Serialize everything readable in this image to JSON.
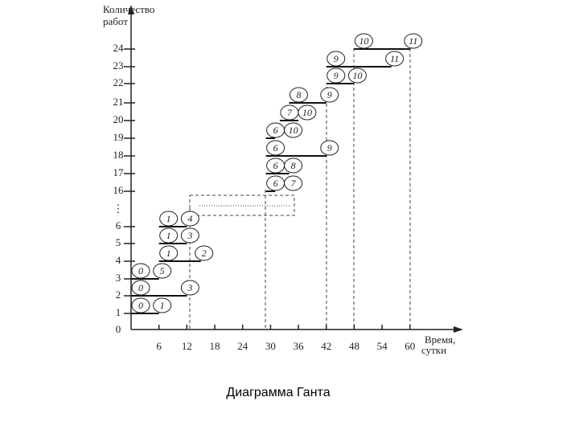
{
  "y_axis_label": [
    "Количество",
    "работ"
  ],
  "x_axis_label": [
    "Время,",
    "сутки"
  ],
  "origin_label": "0",
  "y_labels": [
    "1",
    "2",
    "3",
    "4",
    "5",
    "6",
    "16",
    "17",
    "18",
    "19",
    "20",
    "21",
    "22",
    "23",
    "24"
  ],
  "y_ellipsis": "⋮",
  "x_ticks": [
    6,
    12,
    18,
    24,
    30,
    36,
    42,
    48,
    54,
    60
  ],
  "works": [
    {
      "from": "0",
      "to": "1",
      "start": 0,
      "end": 6
    },
    {
      "from": "0",
      "to": "3",
      "start": 0,
      "end": 12
    },
    {
      "from": "0",
      "to": "5",
      "start": 0,
      "end": 6
    },
    {
      "from": "1",
      "to": "2",
      "start": 6,
      "end": 15
    },
    {
      "from": "1",
      "to": "3",
      "start": 6,
      "end": 12
    },
    {
      "from": "1",
      "to": "4",
      "start": 6,
      "end": 12
    },
    {
      "from": "6",
      "to": "7",
      "start": 29,
      "end": 31
    },
    {
      "from": "6",
      "to": "8",
      "start": 29,
      "end": 34
    },
    {
      "from": "6",
      "to": "9",
      "start": 29,
      "end": 42
    },
    {
      "from": "6",
      "to": "10",
      "start": 29,
      "end": 31
    },
    {
      "from": "7",
      "to": "10",
      "start": 32,
      "end": 36
    },
    {
      "from": "8",
      "to": "9",
      "start": 34,
      "end": 42
    },
    {
      "from": "9",
      "to": "10",
      "start": 42,
      "end": 48
    },
    {
      "from": "9",
      "to": "11",
      "start": 42,
      "end": 56
    },
    {
      "from": "10",
      "to": "11",
      "start": 48,
      "end": 60
    }
  ],
  "caption": "Диаграмма Ганта"
}
